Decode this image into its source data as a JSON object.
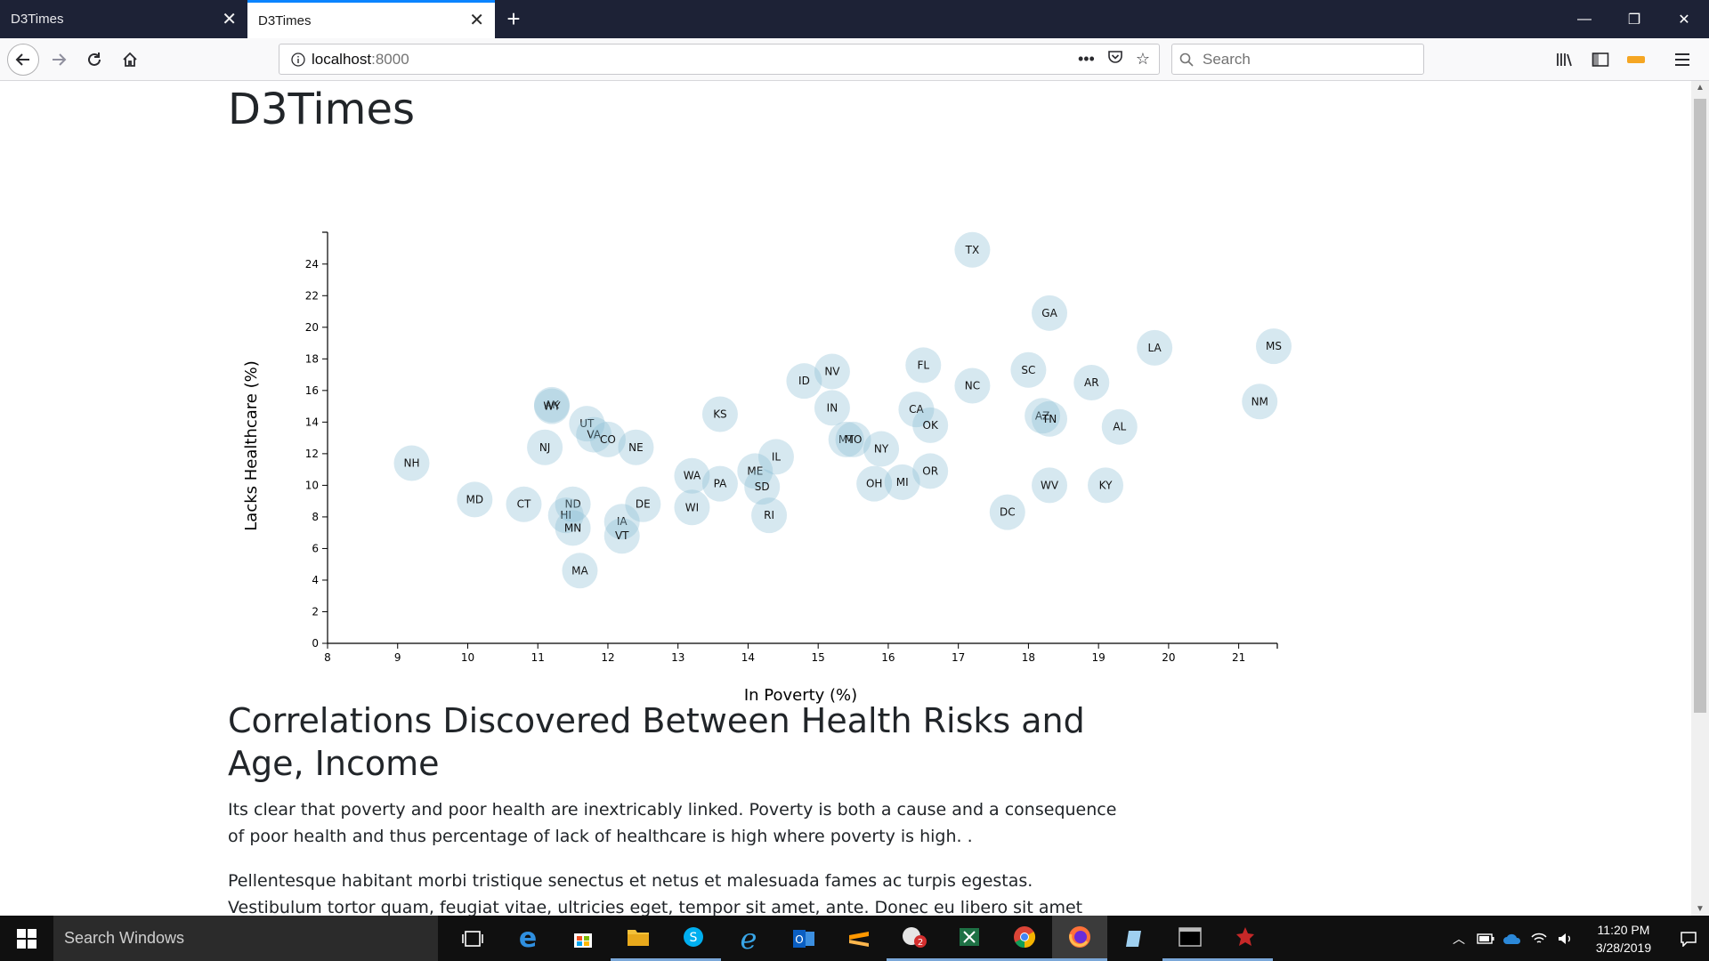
{
  "browser": {
    "tabs": [
      {
        "label": "D3Times",
        "active": false
      },
      {
        "label": "D3Times",
        "active": true
      }
    ],
    "url_host": "localhost",
    "url_port": ":8000",
    "search_placeholder": "Search"
  },
  "page": {
    "title": "D3Times",
    "section_title": "Correlations Discovered Between Health Risks and Age, Income",
    "paragraph1": "Its clear that poverty and poor health are inextricably linked. Poverty is both a cause and a consequence of poor health and thus percentage of lack of healthcare is high where poverty is high. .",
    "paragraph2": "Pellentesque habitant morbi tristique senectus et netus et malesuada fames ac turpis egestas. Vestibulum tortor quam, feugiat vitae, ultricies eget, tempor sit amet, ante. Donec eu libero sit amet quam egestas semper. Aenean"
  },
  "chart_data": {
    "type": "scatter",
    "xlabel": "In Poverty (%)",
    "ylabel": "Lacks Healthcare (%)",
    "xlim": [
      8,
      21.5
    ],
    "ylim": [
      0,
      25
    ],
    "xticks": [
      8,
      9,
      10,
      11,
      12,
      13,
      14,
      15,
      16,
      17,
      18,
      19,
      20,
      21
    ],
    "yticks": [
      0,
      2,
      4,
      6,
      8,
      10,
      12,
      14,
      16,
      18,
      20,
      22,
      24
    ],
    "points": [
      {
        "abbr": "TX",
        "x": 17.2,
        "y": 24.9
      },
      {
        "abbr": "GA",
        "x": 18.3,
        "y": 20.9
      },
      {
        "abbr": "LA",
        "x": 19.8,
        "y": 18.7
      },
      {
        "abbr": "MS",
        "x": 21.5,
        "y": 18.8
      },
      {
        "abbr": "FL",
        "x": 16.5,
        "y": 17.6
      },
      {
        "abbr": "SC",
        "x": 18.0,
        "y": 17.3
      },
      {
        "abbr": "NV",
        "x": 15.2,
        "y": 17.2
      },
      {
        "abbr": "ID",
        "x": 14.8,
        "y": 16.6
      },
      {
        "abbr": "AR",
        "x": 18.9,
        "y": 16.5
      },
      {
        "abbr": "NC",
        "x": 17.2,
        "y": 16.3
      },
      {
        "abbr": "NM",
        "x": 21.3,
        "y": 15.3
      },
      {
        "abbr": "AK",
        "x": 11.2,
        "y": 15.1
      },
      {
        "abbr": "WY",
        "x": 11.2,
        "y": 15.0
      },
      {
        "abbr": "IN",
        "x": 15.2,
        "y": 14.9
      },
      {
        "abbr": "CA",
        "x": 16.4,
        "y": 14.8
      },
      {
        "abbr": "KS",
        "x": 13.6,
        "y": 14.5
      },
      {
        "abbr": "AZ",
        "x": 18.2,
        "y": 14.4
      },
      {
        "abbr": "TN",
        "x": 18.3,
        "y": 14.2
      },
      {
        "abbr": "UT",
        "x": 11.7,
        "y": 13.9
      },
      {
        "abbr": "OK",
        "x": 16.6,
        "y": 13.8
      },
      {
        "abbr": "AL",
        "x": 19.3,
        "y": 13.7
      },
      {
        "abbr": "VA",
        "x": 11.8,
        "y": 13.2
      },
      {
        "abbr": "CO",
        "x": 12.0,
        "y": 12.9
      },
      {
        "abbr": "MT",
        "x": 15.4,
        "y": 12.9
      },
      {
        "abbr": "MO",
        "x": 15.5,
        "y": 12.9
      },
      {
        "abbr": "NJ",
        "x": 11.1,
        "y": 12.4
      },
      {
        "abbr": "NE",
        "x": 12.4,
        "y": 12.4
      },
      {
        "abbr": "NY",
        "x": 15.9,
        "y": 12.3
      },
      {
        "abbr": "IL",
        "x": 14.4,
        "y": 11.8
      },
      {
        "abbr": "NH",
        "x": 9.2,
        "y": 11.4
      },
      {
        "abbr": "ME",
        "x": 14.1,
        "y": 10.9
      },
      {
        "abbr": "OR",
        "x": 16.6,
        "y": 10.9
      },
      {
        "abbr": "WA",
        "x": 13.2,
        "y": 10.6
      },
      {
        "abbr": "PA",
        "x": 13.6,
        "y": 10.1
      },
      {
        "abbr": "OH",
        "x": 15.8,
        "y": 10.1
      },
      {
        "abbr": "MI",
        "x": 16.2,
        "y": 10.2
      },
      {
        "abbr": "SD",
        "x": 14.2,
        "y": 9.9
      },
      {
        "abbr": "WV",
        "x": 18.3,
        "y": 10.0
      },
      {
        "abbr": "KY",
        "x": 19.1,
        "y": 10.0
      },
      {
        "abbr": "MD",
        "x": 10.1,
        "y": 9.1
      },
      {
        "abbr": "CT",
        "x": 10.8,
        "y": 8.8
      },
      {
        "abbr": "ND",
        "x": 11.5,
        "y": 8.8
      },
      {
        "abbr": "DE",
        "x": 12.5,
        "y": 8.8
      },
      {
        "abbr": "WI",
        "x": 13.2,
        "y": 8.6
      },
      {
        "abbr": "DC",
        "x": 17.7,
        "y": 8.3
      },
      {
        "abbr": "HI",
        "x": 11.4,
        "y": 8.1
      },
      {
        "abbr": "RI",
        "x": 14.3,
        "y": 8.1
      },
      {
        "abbr": "IA",
        "x": 12.2,
        "y": 7.7
      },
      {
        "abbr": "MN",
        "x": 11.5,
        "y": 7.3
      },
      {
        "abbr": "VT",
        "x": 12.2,
        "y": 6.8
      },
      {
        "abbr": "MA",
        "x": 11.6,
        "y": 4.6
      }
    ]
  },
  "taskbar": {
    "search_placeholder": "Search Windows",
    "time": "11:20 PM",
    "date": "3/28/2019",
    "skype_badge": "2"
  }
}
